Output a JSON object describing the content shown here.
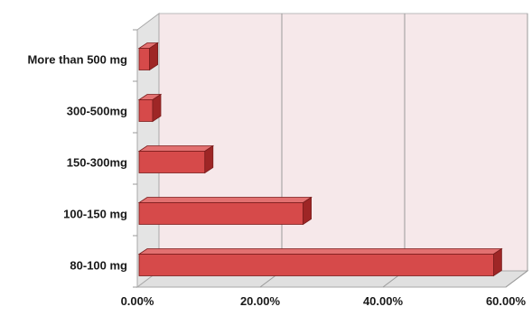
{
  "chart_data": {
    "type": "bar",
    "orientation": "horizontal",
    "style": "3d",
    "categories": [
      "80-100 mg",
      "100-150 mg",
      "150-300mg",
      "300-500mg",
      "More than 500 mg"
    ],
    "values": [
      58.0,
      27.0,
      11.0,
      2.5,
      2.0
    ],
    "value_unit": "percent",
    "xlim": [
      0,
      60
    ],
    "x_ticks": [
      "0.00%",
      "20.00%",
      "40.00%",
      "60.00%"
    ],
    "title": "",
    "xlabel": "",
    "ylabel": "",
    "grid": true,
    "legend": "none",
    "colors": {
      "bar_front": "#d64a4a",
      "bar_top": "#e27070",
      "bar_side": "#9e2626",
      "bar_border": "#7a1c1c",
      "plot_back": "#f6e8ea",
      "plot_side_wall": "#e4e4e4",
      "plot_floor": "#e0e0e0",
      "gridline": "#9a9a9a"
    }
  }
}
